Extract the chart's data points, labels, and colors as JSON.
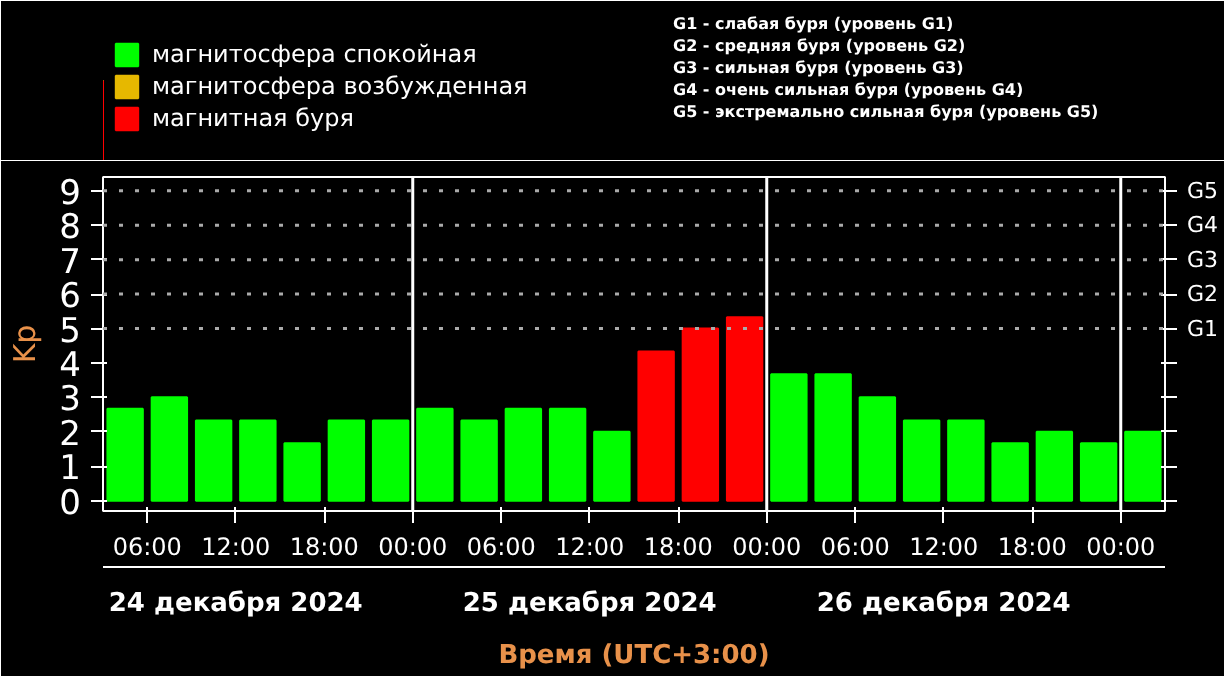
{
  "chart_data": {
    "type": "bar",
    "x": [
      "2024-12-24T04:30",
      "2024-12-24T07:30",
      "2024-12-24T10:30",
      "2024-12-24T13:30",
      "2024-12-24T16:30",
      "2024-12-24T19:30",
      "2024-12-24T22:30",
      "2024-12-25T01:30",
      "2024-12-25T04:30",
      "2024-12-25T07:30",
      "2024-12-25T10:30",
      "2024-12-25T13:30",
      "2024-12-25T16:30",
      "2024-12-25T19:30",
      "2024-12-25T22:30",
      "2024-12-26T01:30",
      "2024-12-26T04:30",
      "2024-12-26T07:30",
      "2024-12-26T10:30",
      "2024-12-26T13:30",
      "2024-12-26T16:30",
      "2024-12-26T19:30",
      "2024-12-26T22:30",
      "2024-12-27T01:30"
    ],
    "series": [
      {
        "name": "магнитосфера спокойная",
        "color": "#00ff00",
        "values": [
          2.67,
          3.0,
          2.33,
          2.33,
          1.67,
          2.33,
          2.33,
          2.67,
          2.33,
          2.67,
          2.67,
          2.0,
          null,
          null,
          null,
          3.67,
          3.67,
          3.0,
          2.33,
          2.33,
          1.67,
          2.0,
          1.67,
          2.0
        ]
      },
      {
        "name": "магнитосфера возбужденная",
        "color": "#e6b800",
        "values": [
          null,
          null,
          null,
          null,
          null,
          null,
          null,
          null,
          null,
          null,
          null,
          null,
          null,
          null,
          null,
          null,
          null,
          null,
          null,
          null,
          null,
          null,
          null,
          null
        ]
      },
      {
        "name": "магнитная буря",
        "color": "#ff0000",
        "values": [
          null,
          null,
          null,
          null,
          null,
          null,
          null,
          null,
          null,
          null,
          null,
          null,
          4.33,
          5.0,
          5.33,
          null,
          null,
          null,
          null,
          null,
          null,
          null,
          null,
          null
        ]
      }
    ],
    "ylabel": "Kp",
    "xlabel": "Время (UTC+3:00)",
    "xlim": [
      "2024-12-24T03:00",
      "2024-12-27T03:00"
    ],
    "xticks": [
      {
        "value": "2024-12-24T06:00",
        "label": "06:00"
      },
      {
        "value": "2024-12-24T12:00",
        "label": "12:00"
      },
      {
        "value": "2024-12-24T18:00",
        "label": "18:00"
      },
      {
        "value": "2024-12-25T00:00",
        "label": "00:00"
      },
      {
        "value": "2024-12-25T06:00",
        "label": "06:00"
      },
      {
        "value": "2024-12-25T12:00",
        "label": "12:00"
      },
      {
        "value": "2024-12-25T18:00",
        "label": "18:00"
      },
      {
        "value": "2024-12-26T00:00",
        "label": "00:00"
      },
      {
        "value": "2024-12-26T06:00",
        "label": "06:00"
      },
      {
        "value": "2024-12-26T12:00",
        "label": "12:00"
      },
      {
        "value": "2024-12-26T18:00",
        "label": "18:00"
      },
      {
        "value": "2024-12-27T00:00",
        "label": "00:00"
      }
    ],
    "ylim": [
      -0.3,
      9.4
    ],
    "yticks": [
      0,
      1,
      2,
      3,
      4,
      5,
      6,
      7,
      8,
      9
    ],
    "ref_lines": [
      {
        "axis": "y",
        "value": 5,
        "label": "G1",
        "color": "#aaaaaa",
        "line_style": "dotted"
      },
      {
        "axis": "y",
        "value": 6,
        "label": "G2",
        "color": "#aaaaaa",
        "line_style": "dotted"
      },
      {
        "axis": "y",
        "value": 7,
        "label": "G3",
        "color": "#aaaaaa",
        "line_style": "dotted"
      },
      {
        "axis": "y",
        "value": 8,
        "label": "G4",
        "color": "#aaaaaa",
        "line_style": "dotted"
      },
      {
        "axis": "y",
        "value": 9,
        "label": "G5",
        "color": "#aaaaaa",
        "line_style": "dotted"
      },
      {
        "axis": "x",
        "value": "2024-12-25T00:00",
        "label": null,
        "color": "#ffffff"
      },
      {
        "axis": "x",
        "value": "2024-12-26T00:00",
        "label": null,
        "color": "#ffffff"
      },
      {
        "axis": "x",
        "value": "2024-12-27T00:00",
        "label": null,
        "color": "#ffffff"
      }
    ],
    "annotations": [
      "24 декабря 2024",
      "25 декабря 2024",
      "26 декабря 2024",
      "G1 - слабая буря (уровень G1)",
      "G2 - средняя буря (уровень G2)",
      "G3 - сильная буря (уровень G3)",
      "G4 - очень сильная буря (уровень G4)",
      "G5 - экстремально сильная буря (уровень G5)"
    ],
    "legend": "top left"
  }
}
